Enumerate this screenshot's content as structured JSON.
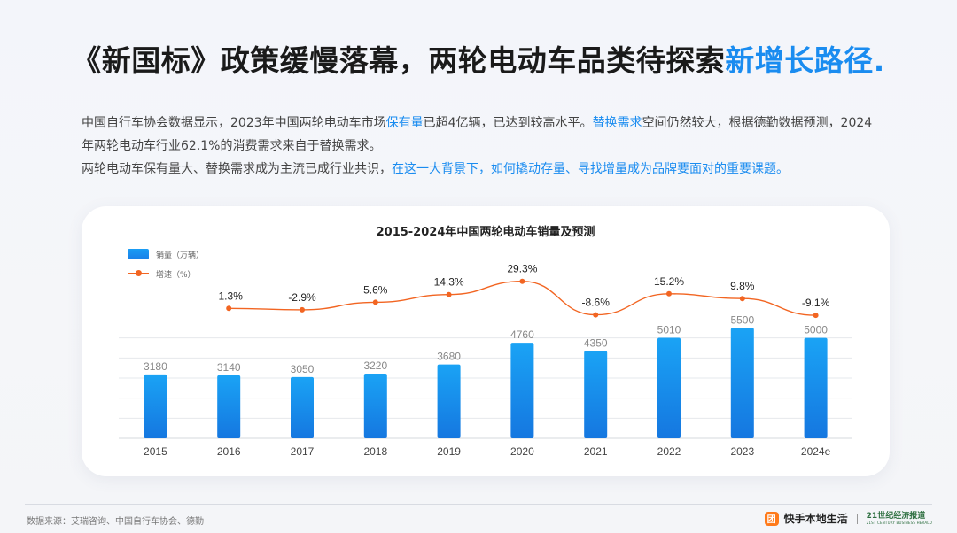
{
  "headline": {
    "main": "《新国标》政策缓慢落幕，两轮电动车品类待探索",
    "highlight": "新增长路径."
  },
  "intro": {
    "p1_a": "中国自行车协会数据显示，2023年中国两轮电动车市场",
    "p1_blue1": "保有量",
    "p1_b": "已超4亿辆，已达到较高水平。",
    "p1_blue2": "替换需求",
    "p1_c": "空间仍然较大，根据德勤数据预测，2024年两轮电动车行业62.1%的消费需求来自于替换需求。",
    "p2_a": "两轮电动车保有量大、替换需求成为主流已成行业共识，",
    "p2_blue": "在这一大背景下，如何撬动存量、寻找增量成为品牌要面对的重要课题。"
  },
  "legend": {
    "bar_label": "销量（万辆）",
    "line_label": "增速（%）"
  },
  "colors": {
    "accent": "#1a8cf0",
    "bar_top": "#1aa3f5",
    "bar_bottom": "#1577e0",
    "line": "#f26522"
  },
  "chart_data": {
    "type": "bar",
    "title": "2015-2024年中国两轮电动车销量及预测",
    "categories": [
      "2015",
      "2016",
      "2017",
      "2018",
      "2019",
      "2020",
      "2021",
      "2022",
      "2023",
      "2024e"
    ],
    "series": [
      {
        "name": "销量（万辆）",
        "type": "bar",
        "values": [
          3180,
          3140,
          3050,
          3220,
          3680,
          4760,
          4350,
          5010,
          5500,
          5000
        ]
      },
      {
        "name": "增速（%）",
        "type": "line",
        "values": [
          null,
          -1.3,
          -2.9,
          5.6,
          14.3,
          29.3,
          -8.6,
          15.2,
          9.8,
          -9.1
        ],
        "labels": [
          null,
          "-1.3%",
          "-2.9%",
          "5.6%",
          "14.3%",
          "29.3%",
          "-8.6%",
          "15.2%",
          "9.8%",
          "-9.1%"
        ]
      }
    ],
    "ylim": [
      0,
      6000
    ],
    "grid": true,
    "legend_position": "top-left"
  },
  "footer": {
    "source": "数据来源：艾瑞咨询、中国自行车协会、德勤",
    "brand_icon": "团",
    "brand_name": "快手本地生活",
    "partner_main": "21世纪经济报道",
    "partner_sub": "21ST CENTURY BUSINESS HERALD"
  }
}
